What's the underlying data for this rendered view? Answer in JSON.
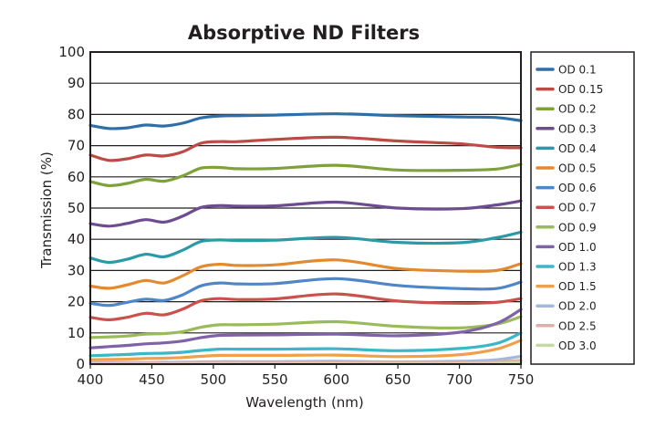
{
  "chart_data": {
    "type": "line",
    "title": "Absorptive ND Filters",
    "xlabel": "Wavelength (nm)",
    "ylabel": "Transmission (%)",
    "xlim": [
      400,
      750
    ],
    "ylim": [
      0,
      100
    ],
    "xticks": [
      "400",
      "450",
      "500",
      "550",
      "600",
      "650",
      "700",
      "750"
    ],
    "yticks": [
      "0",
      "10",
      "20",
      "30",
      "40",
      "50",
      "60",
      "70",
      "80",
      "90",
      "100"
    ],
    "grid": "horizontal",
    "legend_position": "right",
    "x": [
      400,
      415,
      430,
      445,
      460,
      475,
      490,
      505,
      520,
      550,
      600,
      650,
      700,
      730,
      750
    ],
    "series": [
      {
        "name": "OD 0.1",
        "color": "#2f6fa8",
        "values": [
          76.5,
          75.5,
          75.7,
          76.6,
          76.3,
          77.2,
          78.9,
          79.5,
          79.6,
          79.8,
          80.2,
          79.6,
          79.2,
          79.0,
          78.0
        ]
      },
      {
        "name": "OD 0.15",
        "color": "#bd4b45",
        "values": [
          67.0,
          65.3,
          65.8,
          67.0,
          66.7,
          68.0,
          70.8,
          71.3,
          71.3,
          72.0,
          72.7,
          71.5,
          70.6,
          69.5,
          69.3
        ]
      },
      {
        "name": "OD 0.2",
        "color": "#7ea13b",
        "values": [
          58.5,
          57.2,
          57.9,
          59.2,
          58.6,
          60.3,
          62.8,
          63.0,
          62.6,
          62.7,
          63.7,
          62.2,
          62.1,
          62.5,
          64.0
        ]
      },
      {
        "name": "OD 0.3",
        "color": "#6d4c91",
        "values": [
          45.0,
          44.2,
          45.1,
          46.3,
          45.5,
          47.4,
          50.2,
          50.8,
          50.6,
          50.7,
          51.9,
          50.0,
          49.8,
          51.0,
          52.3
        ]
      },
      {
        "name": "OD 0.4",
        "color": "#2a9aa6",
        "values": [
          34.0,
          32.6,
          33.6,
          35.2,
          34.4,
          36.5,
          39.3,
          39.8,
          39.6,
          39.7,
          40.6,
          39.0,
          38.9,
          40.5,
          42.3
        ]
      },
      {
        "name": "OD 0.5",
        "color": "#e38a2f",
        "values": [
          25.0,
          24.3,
          25.4,
          26.8,
          26.0,
          28.3,
          31.2,
          32.0,
          31.6,
          31.8,
          33.4,
          30.6,
          29.8,
          30.0,
          32.2
        ]
      },
      {
        "name": "OD 0.6",
        "color": "#4f86c6",
        "values": [
          19.5,
          18.8,
          19.8,
          20.8,
          20.4,
          22.2,
          25.1,
          26.0,
          25.7,
          25.8,
          27.4,
          25.2,
          24.2,
          24.2,
          26.3
        ]
      },
      {
        "name": "OD 0.7",
        "color": "#c9524d",
        "values": [
          15.0,
          14.2,
          15.0,
          16.3,
          15.8,
          17.6,
          20.3,
          21.0,
          20.7,
          20.9,
          22.5,
          20.2,
          19.5,
          19.8,
          21.0
        ]
      },
      {
        "name": "OD 0.9",
        "color": "#9abb59",
        "values": [
          8.5,
          8.7,
          9.0,
          9.6,
          9.8,
          10.4,
          11.8,
          12.6,
          12.6,
          12.8,
          13.6,
          12.1,
          11.6,
          12.8,
          15.2
        ]
      },
      {
        "name": "OD 1.0",
        "color": "#7f62a8",
        "values": [
          5.2,
          5.6,
          6.0,
          6.5,
          6.8,
          7.4,
          8.5,
          9.2,
          9.3,
          9.4,
          9.6,
          9.1,
          10.2,
          13.0,
          17.5
        ]
      },
      {
        "name": "OD 1.3",
        "color": "#3bb7c7",
        "values": [
          2.7,
          2.9,
          3.1,
          3.4,
          3.5,
          3.8,
          4.4,
          4.8,
          4.8,
          4.8,
          4.9,
          4.3,
          5.0,
          6.6,
          10.0
        ]
      },
      {
        "name": "OD 1.5",
        "color": "#f0a04b",
        "values": [
          1.4,
          1.5,
          1.6,
          1.8,
          1.9,
          2.1,
          2.5,
          2.8,
          2.8,
          2.8,
          2.9,
          2.4,
          3.0,
          4.8,
          7.6
        ]
      },
      {
        "name": "OD 2.0",
        "color": "#a4b8dc",
        "values": [
          0.5,
          0.5,
          0.5,
          0.5,
          0.6,
          0.6,
          0.7,
          0.8,
          0.8,
          0.8,
          0.9,
          0.7,
          0.9,
          1.4,
          2.5
        ]
      },
      {
        "name": "OD 2.5",
        "color": "#e6aaa7",
        "values": [
          0.3,
          0.3,
          0.3,
          0.3,
          0.3,
          0.3,
          0.4,
          0.4,
          0.4,
          0.4,
          0.5,
          0.4,
          0.5,
          0.7,
          1.2
        ]
      },
      {
        "name": "OD 3.0",
        "color": "#c5d9a2",
        "values": [
          0.1,
          0.1,
          0.1,
          0.1,
          0.1,
          0.1,
          0.2,
          0.2,
          0.2,
          0.2,
          0.2,
          0.2,
          0.2,
          0.3,
          0.6
        ]
      }
    ]
  }
}
